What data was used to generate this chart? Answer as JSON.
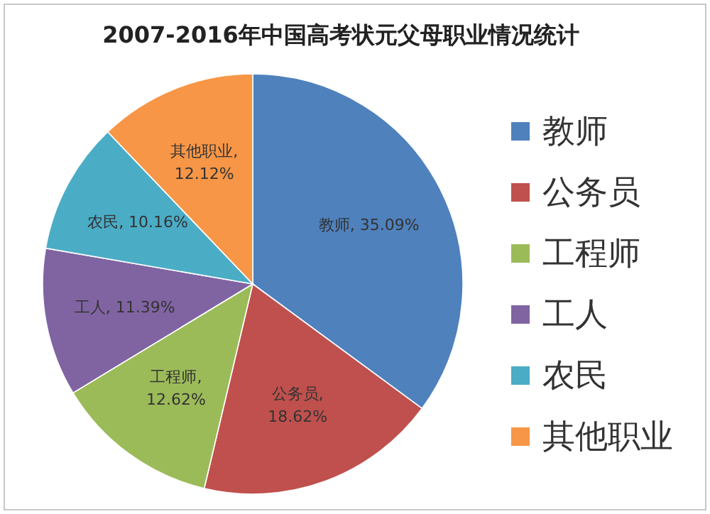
{
  "chart_data": {
    "type": "pie",
    "title": "2007-2016年中国高考状元父母职业情况统计",
    "categories": [
      "教师",
      "公务员",
      "工程师",
      "工人",
      "农民",
      "其他职业"
    ],
    "values": [
      35.09,
      18.62,
      12.62,
      11.39,
      10.16,
      12.12
    ],
    "colors": [
      "#4f81bd",
      "#c0504d",
      "#9bbb59",
      "#8064a2",
      "#4bacc6",
      "#f79646"
    ],
    "value_labels": [
      "教师, 35.09%",
      "公务员, 18.62%",
      "工程师, 12.62%",
      "工人, 11.39%",
      "农民, 10.16%",
      "其他职业, 12.12%"
    ],
    "legend": "right"
  }
}
